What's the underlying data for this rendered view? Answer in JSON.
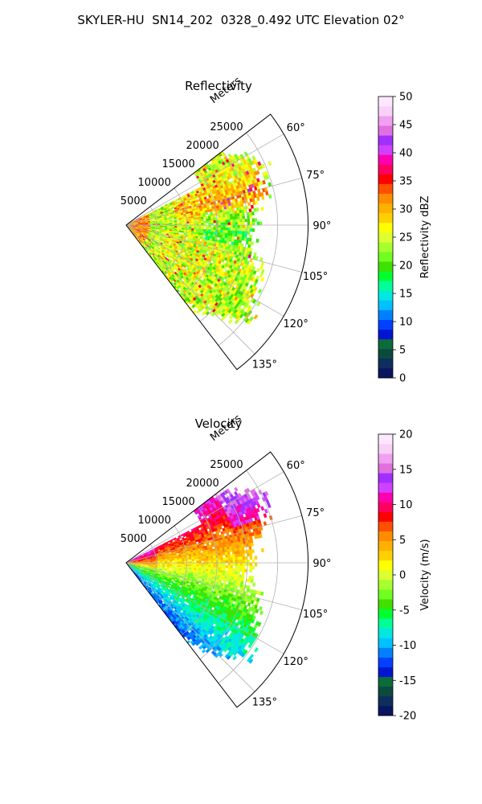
{
  "figure": {
    "title": "SKYLER-HU  SN14_202  0328_0.492 UTC Elevation 02°"
  },
  "chart_data": [
    {
      "type": "heatmap",
      "subtype": "polar-sector (PPI)",
      "title": "Reflectivity",
      "radial_label": "Meters",
      "radial_ticks": [
        "5000",
        "10000",
        "15000",
        "20000",
        "25000"
      ],
      "radial_tick_values": [
        5000,
        10000,
        15000,
        20000,
        25000
      ],
      "rlim": [
        0,
        30000
      ],
      "azimuth_ticks": [
        "60°",
        "75°",
        "90°",
        "105°",
        "120°",
        "135°"
      ],
      "azimuth_tick_values": [
        60,
        75,
        90,
        105,
        120,
        135
      ],
      "azimuth_range": [
        52.5,
        142.5
      ],
      "grid": true,
      "colorbar": {
        "label": "Reflectivity dBZ",
        "range": [
          0,
          50
        ],
        "ticks": [
          "0",
          "5",
          "10",
          "15",
          "20",
          "25",
          "30",
          "35",
          "40",
          "45",
          "50"
        ],
        "colors": [
          "#0a1560",
          "#0d2e5e",
          "#0c4a3e",
          "#0c6b3a",
          "#0015d0",
          "#0040ff",
          "#0080ff",
          "#00c0ff",
          "#00e8e0",
          "#00ff98",
          "#00ff30",
          "#40e000",
          "#70ff20",
          "#a8ff30",
          "#ddff30",
          "#ffff00",
          "#ffd000",
          "#ffb000",
          "#ff8c00",
          "#ff5000",
          "#ff0000",
          "#ff0060",
          "#ff00b0",
          "#d040ff",
          "#a030ff",
          "#e070e0",
          "#f0a0f0",
          "#f8d0f8",
          "#ffe8ff"
        ],
        "position": "right"
      },
      "data_summary": "Sector scan from azimuth ~60° to ~135°; widespread 20–30 dBZ returns (green–yellow) with embedded 33–40 dBZ cells (red/magenta) near 70–95° and close to the radar"
    },
    {
      "type": "heatmap",
      "subtype": "polar-sector (PPI)",
      "title": "Velocity",
      "radial_label": "Meters",
      "radial_ticks": [
        "5000",
        "10000",
        "15000",
        "20000",
        "25000"
      ],
      "radial_tick_values": [
        5000,
        10000,
        15000,
        20000,
        25000
      ],
      "rlim": [
        0,
        30000
      ],
      "azimuth_ticks": [
        "60°",
        "75°",
        "90°",
        "105°",
        "120°",
        "135°"
      ],
      "azimuth_tick_values": [
        60,
        75,
        90,
        105,
        120,
        135
      ],
      "azimuth_range": [
        52.5,
        142.5
      ],
      "grid": true,
      "colorbar": {
        "label": "Velocity (m/s)",
        "range": [
          -20,
          20
        ],
        "ticks": [
          "-20",
          "-15",
          "-10",
          "-5",
          "0",
          "5",
          "10",
          "15",
          "20"
        ],
        "colors": [
          "#0a1560",
          "#0d2e5e",
          "#0c4a3e",
          "#0c6b3a",
          "#0015d0",
          "#0040ff",
          "#0080ff",
          "#00c0ff",
          "#00e8e0",
          "#00ff98",
          "#00ff30",
          "#40e000",
          "#70ff20",
          "#a8ff30",
          "#ddff30",
          "#ffff00",
          "#ffd000",
          "#ffb000",
          "#ff8c00",
          "#ff5000",
          "#ff0000",
          "#ff0060",
          "#ff00b0",
          "#d040ff",
          "#a030ff",
          "#e070e0",
          "#f0a0f0",
          "#f8d0f8",
          "#ffe8ff"
        ],
        "position": "right"
      },
      "data_summary": "Positive (receding, 5–14 m/s) velocities at northern azimuths 60–80°, near 0 m/s around 90°, negative (approaching, -5 to -12 m/s) velocities at southern azimuths 110–135°"
    }
  ]
}
